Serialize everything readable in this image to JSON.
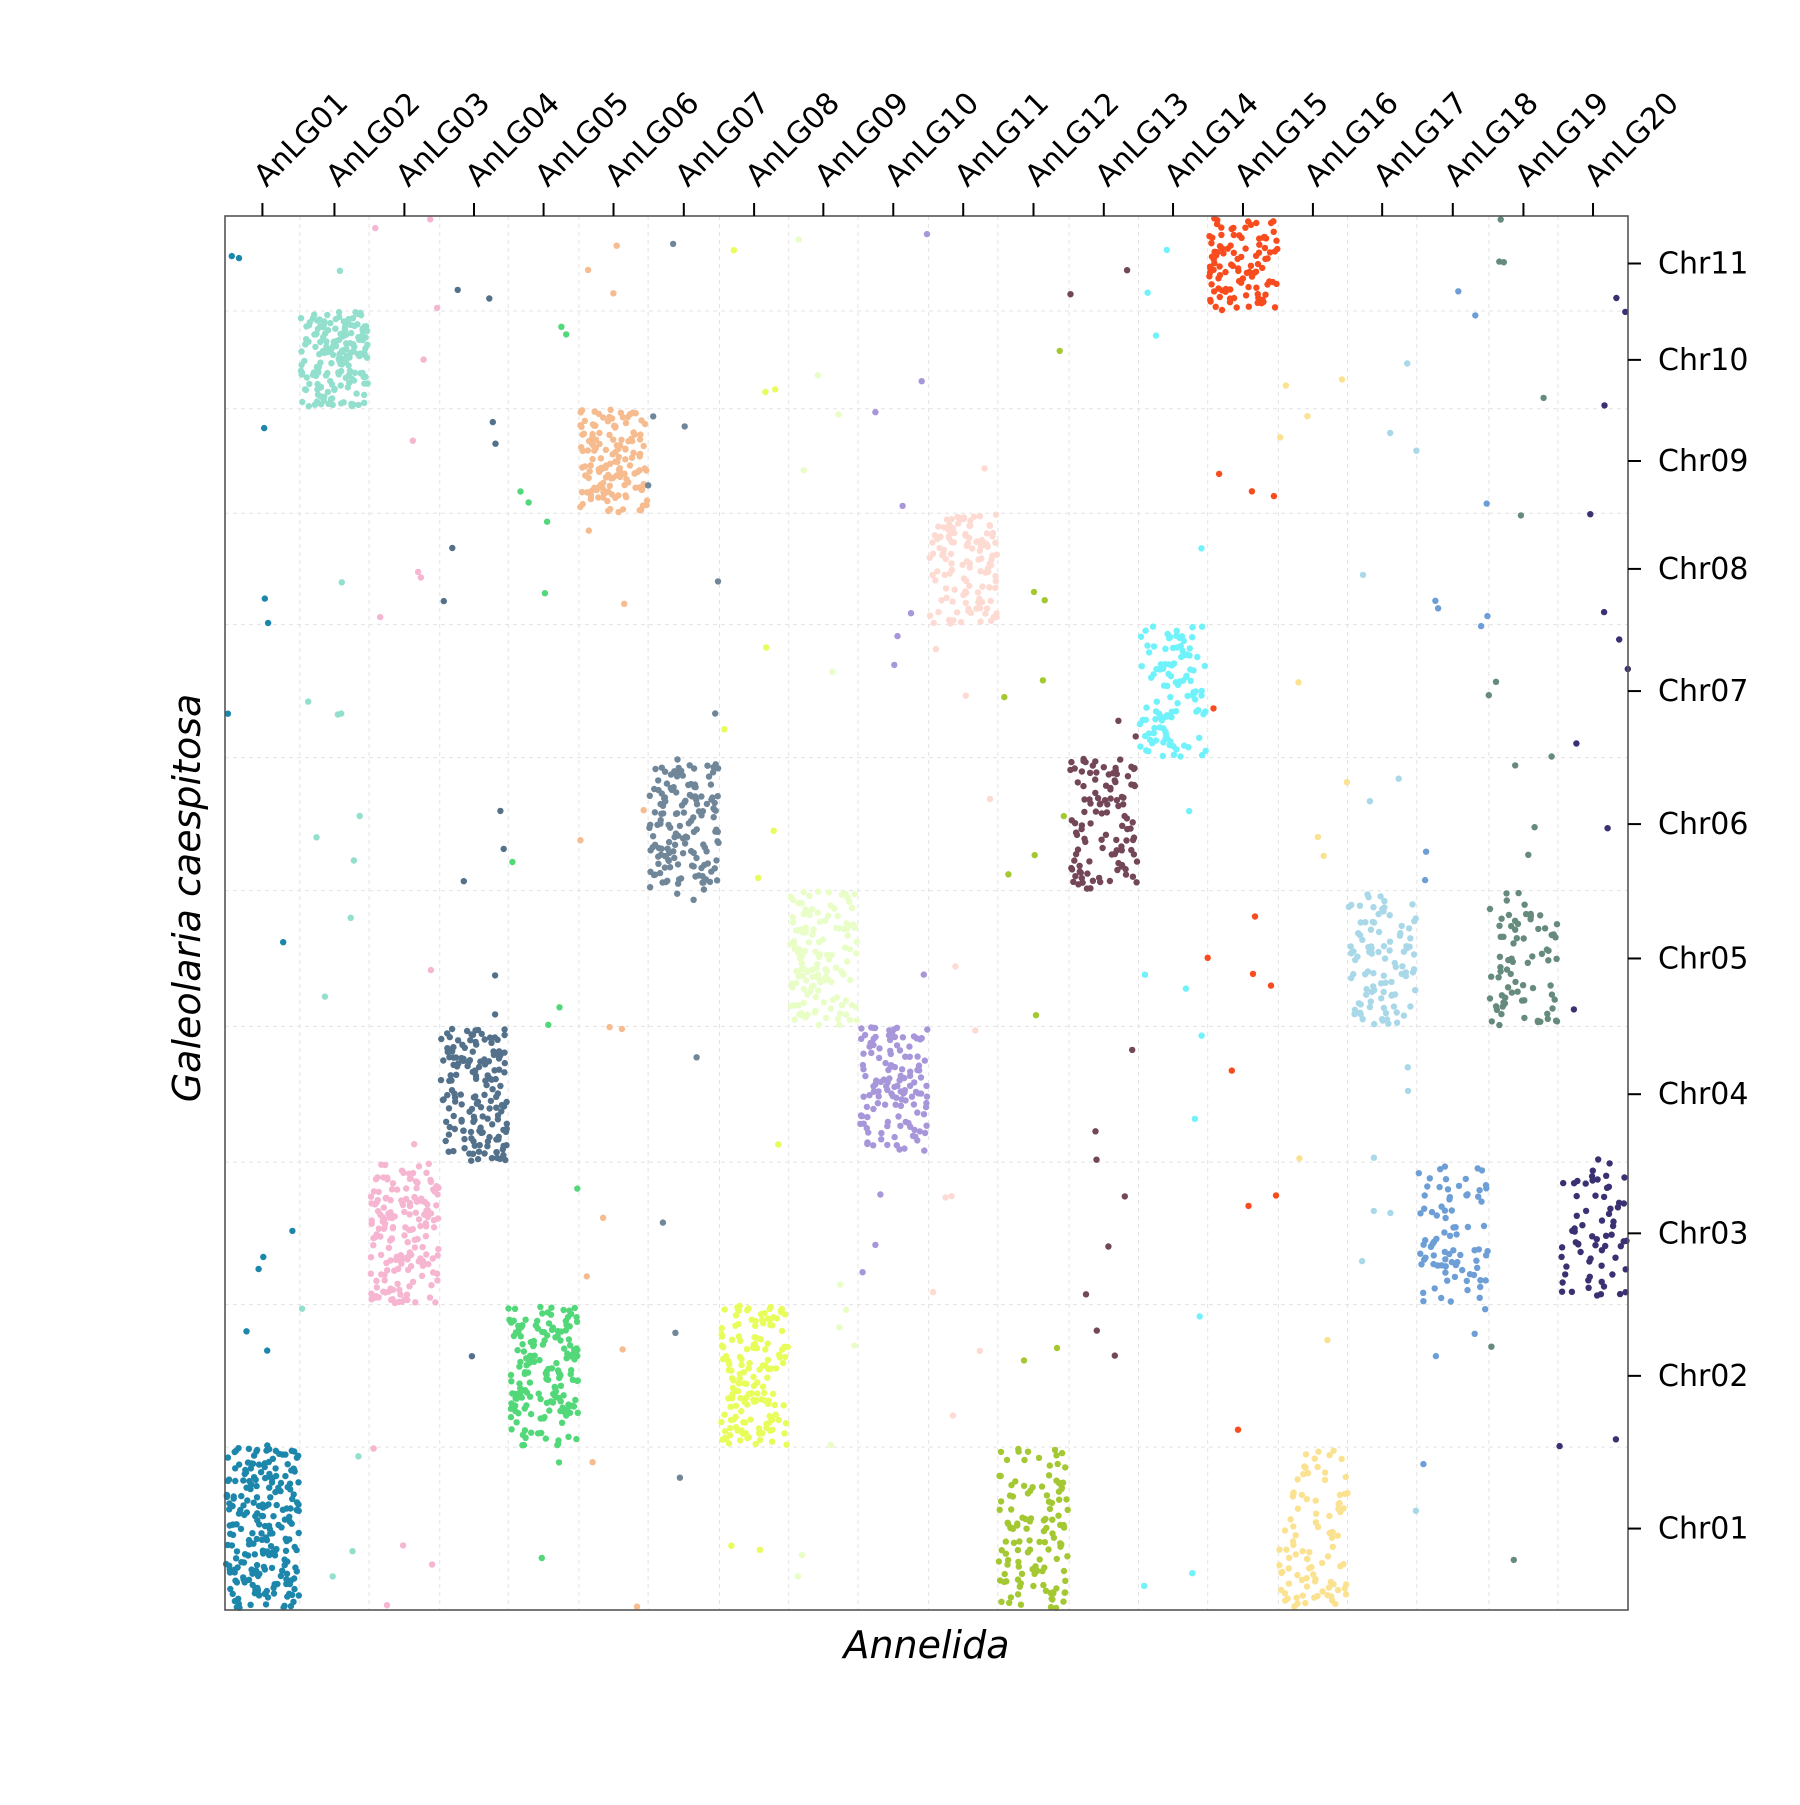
{
  "chart_data": {
    "type": "scatter",
    "title": "",
    "xlabel": "Annelida",
    "ylabel": "Galeolaria caespitosa",
    "grid": true,
    "legend": "none",
    "x_categories": [
      "AnLG01",
      "AnLG02",
      "AnLG03",
      "AnLG04",
      "AnLG05",
      "AnLG06",
      "AnLG07",
      "AnLG08",
      "AnLG09",
      "AnLG10",
      "AnLG11",
      "AnLG12",
      "AnLG13",
      "AnLG14",
      "AnLG15",
      "AnLG16",
      "AnLG17",
      "AnLG18",
      "AnLG19",
      "AnLG20"
    ],
    "x_sizes": [
      1.07,
      0.99,
      1.01,
      0.98,
      1.01,
      0.99,
      1.02,
      0.99,
      0.99,
      1.01,
      0.99,
      1.02,
      0.99,
      0.99,
      1.01,
      0.99,
      0.99,
      1.03,
      0.99,
      1.0
    ],
    "y_categories": [
      "Chr01",
      "Chr02",
      "Chr03",
      "Chr04",
      "Chr05",
      "Chr06",
      "Chr07",
      "Chr08",
      "Chr09",
      "Chr10",
      "Chr11"
    ],
    "y_sizes": [
      1.2,
      1.05,
      1.05,
      1.0,
      1.0,
      0.98,
      0.98,
      0.82,
      0.77,
      0.72,
      0.7
    ],
    "colors": [
      "#1d86ab",
      "#91dfcc",
      "#f6b5d1",
      "#53718b",
      "#52d879",
      "#f6bb8e",
      "#708699",
      "#e8fc5a",
      "#e8fec6",
      "#a896da",
      "#fddad2",
      "#a4c832",
      "#734658",
      "#6ff2fa",
      "#f94c1e",
      "#fbe291",
      "#a9d8e8",
      "#6d9fd6",
      "#668b7c",
      "#393172"
    ],
    "blocks": [
      {
        "x": "AnLG01",
        "y": "Chr01",
        "points": 230
      },
      {
        "x": "AnLG02",
        "y": "Chr10",
        "points": 180
      },
      {
        "x": "AnLG03",
        "y": "Chr03",
        "points": 175
      },
      {
        "x": "AnLG04",
        "y": "Chr04",
        "points": 160
      },
      {
        "x": "AnLG05",
        "y": "Chr02",
        "points": 170
      },
      {
        "x": "AnLG06",
        "y": "Chr09",
        "points": 150
      },
      {
        "x": "AnLG07",
        "y": "Chr06",
        "points": 150
      },
      {
        "x": "AnLG08",
        "y": "Chr02",
        "points": 155
      },
      {
        "x": "AnLG09",
        "y": "Chr05",
        "points": 140
      },
      {
        "x": "AnLG10",
        "y": "Chr04",
        "points": 130
      },
      {
        "x": "AnLG11",
        "y": "Chr08",
        "points": 120
      },
      {
        "x": "AnLG12",
        "y": "Chr01",
        "points": 120
      },
      {
        "x": "AnLG13",
        "y": "Chr06",
        "points": 110
      },
      {
        "x": "AnLG14",
        "y": "Chr07",
        "points": 110
      },
      {
        "x": "AnLG15",
        "y": "Chr11",
        "points": 105
      },
      {
        "x": "AnLG16",
        "y": "Chr01",
        "points": 90
      },
      {
        "x": "AnLG17",
        "y": "Chr05",
        "points": 100
      },
      {
        "x": "AnLG18",
        "y": "Chr03",
        "points": 85
      },
      {
        "x": "AnLG19",
        "y": "Chr05",
        "points": 75
      },
      {
        "x": "AnLG20",
        "y": "Chr03",
        "points": 65
      }
    ]
  }
}
